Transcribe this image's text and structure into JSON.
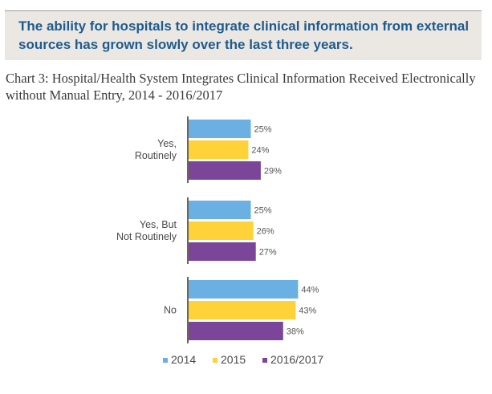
{
  "callout": {
    "text": "The ability for hospitals to integrate clinical information from external sources has grown slowly over the last three years."
  },
  "chart_data": {
    "type": "bar",
    "orientation": "horizontal",
    "title": "Chart 3: Hospital/Health System Integrates Clinical Information Received Electronically without Manual Entry, 2014 - 2016/2017",
    "xlabel": "",
    "ylabel": "",
    "categories": [
      [
        "Yes,",
        "Routinely"
      ],
      [
        "Yes, But",
        "Not Routinely"
      ],
      [
        "No"
      ]
    ],
    "series": [
      {
        "name": "2014",
        "color": "#6ab0e2",
        "values": [
          25,
          25,
          44
        ]
      },
      {
        "name": "2015",
        "color": "#ffd23a",
        "values": [
          24,
          26,
          43
        ]
      },
      {
        "name": "2016/2017",
        "color": "#7b4599",
        "values": [
          29,
          27,
          38
        ]
      }
    ],
    "value_suffix": "%",
    "xlim": [
      0,
      50
    ],
    "grid": false,
    "legend_position": "bottom"
  }
}
